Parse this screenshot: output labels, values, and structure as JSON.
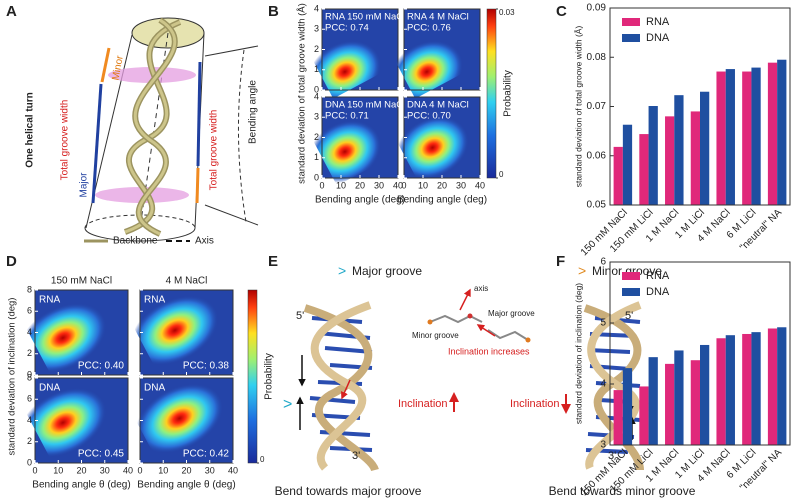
{
  "panel_labels": [
    "A",
    "B",
    "C",
    "D",
    "E",
    "F"
  ],
  "diagram_a": {
    "turn": "One helical turn",
    "groove_left": "Total groove width",
    "minor": "Minor",
    "major": "Major",
    "groove_right": "Total groove width",
    "bending": "Bending angle",
    "legend_backbone": "Backbone",
    "legend_axis": "Axis"
  },
  "diagram_e": {
    "major_mark": ">",
    "major": "Major groove",
    "minor_mark": ">",
    "minor": "Minor groove",
    "axis": "axis",
    "inset_major": "Major groove",
    "inset_minor": "Minor groove",
    "increases": "Inclination increases",
    "incl_left": "Inclination",
    "incl_right": "Inclination",
    "five_left": "5'",
    "three_left": "3'",
    "five_right": "5'",
    "three_right": "3'",
    "side_left": ">",
    "side_right": "<",
    "caption_left": "Bend towards major groove",
    "caption_right": "Bend towards minor groove"
  },
  "chart_data": [
    {
      "type": "density",
      "xlabel": "Bending angle (deg)",
      "ylabel": "standard deviation of total groove width (Å)",
      "xlim": [
        0,
        40
      ],
      "xticks": [
        0,
        10,
        20,
        30,
        40
      ],
      "ylim": [
        0,
        4
      ],
      "yticks": [
        0,
        1,
        2,
        3,
        4
      ],
      "colorbar": {
        "label": "Probability",
        "lim": [
          0,
          0.03
        ],
        "ticks": [
          0,
          0.03
        ]
      },
      "subplots": [
        {
          "title": "RNA 150 mM NaCl",
          "annotation": "PCC: 0.74",
          "peak": {
            "x": 12,
            "y": 0.9
          }
        },
        {
          "title": "RNA 4 M NaCl",
          "annotation": "PCC: 0.76",
          "peak": {
            "x": 12,
            "y": 0.9
          }
        },
        {
          "title": "DNA 150 mM NaCl",
          "annotation": "PCC: 0.71",
          "peak": {
            "x": 12,
            "y": 1.3
          }
        },
        {
          "title": "DNA 4 M NaCl",
          "annotation": "PCC: 0.70",
          "peak": {
            "x": 15,
            "y": 1.5
          }
        }
      ]
    },
    {
      "type": "bar",
      "ylabel": "standard deviation of total groove width (Å)",
      "categories": [
        "150 mM NaCl",
        "150 mM LiCl",
        "1 M NaCl",
        "1 M LiCl",
        "4 M NaCl",
        "6 M LiCl",
        "\"neutral\" NA"
      ],
      "series": [
        {
          "name": "RNA",
          "color": "#e0287a",
          "values": [
            0.0618,
            0.0644,
            0.068,
            0.069,
            0.0771,
            0.0771,
            0.0789
          ]
        },
        {
          "name": "DNA",
          "color": "#1f4fa0",
          "values": [
            0.0663,
            0.0701,
            0.0723,
            0.073,
            0.0776,
            0.0779,
            0.0795
          ]
        }
      ],
      "ylim": [
        0.05,
        0.09
      ],
      "yticks": [
        0.05,
        0.06,
        0.07,
        0.08,
        0.09
      ],
      "legend": "upper left"
    },
    {
      "type": "density",
      "xlabel": "Bending angle θ (deg)",
      "ylabel": "standard deviation of inclination (deg)",
      "column_titles": [
        "150 mM NaCl",
        "4 M NaCl"
      ],
      "xlim": [
        0,
        40
      ],
      "xticks": [
        0,
        10,
        20,
        30,
        40
      ],
      "ylim": [
        0,
        8
      ],
      "yticks": [
        0,
        2,
        4,
        6,
        8
      ],
      "colorbar": {
        "label": "Probability",
        "ticks": [
          0
        ]
      },
      "subplots": [
        {
          "title": "RNA",
          "annotation": "PCC: 0.40",
          "peak": {
            "x": 12,
            "y": 3.5
          }
        },
        {
          "title": "RNA",
          "annotation": "PCC: 0.38",
          "peak": {
            "x": 15,
            "y": 4.2
          }
        },
        {
          "title": "DNA",
          "annotation": "PCC: 0.45",
          "peak": {
            "x": 12,
            "y": 3.8
          }
        },
        {
          "title": "DNA",
          "annotation": "PCC: 0.42",
          "peak": {
            "x": 17,
            "y": 4.2
          }
        }
      ]
    },
    {
      "type": "bar",
      "ylabel": "standard deviation of inclination (deg)",
      "categories": [
        "150 mM NaCl",
        "150 mM LiCl",
        "1 M NaCl",
        "1 M LiCl",
        "4 M NaCl",
        "6 M LiCl",
        "\"neutral\" NA"
      ],
      "series": [
        {
          "name": "RNA",
          "color": "#e0287a",
          "values": [
            3.9,
            3.96,
            4.33,
            4.39,
            4.75,
            4.82,
            4.91
          ]
        },
        {
          "name": "DNA",
          "color": "#1f4fa0",
          "values": [
            4.26,
            4.44,
            4.55,
            4.64,
            4.8,
            4.85,
            4.93
          ]
        }
      ],
      "ylim": [
        3,
        6
      ],
      "yticks": [
        3,
        4,
        5,
        6
      ],
      "legend": "upper left"
    }
  ]
}
